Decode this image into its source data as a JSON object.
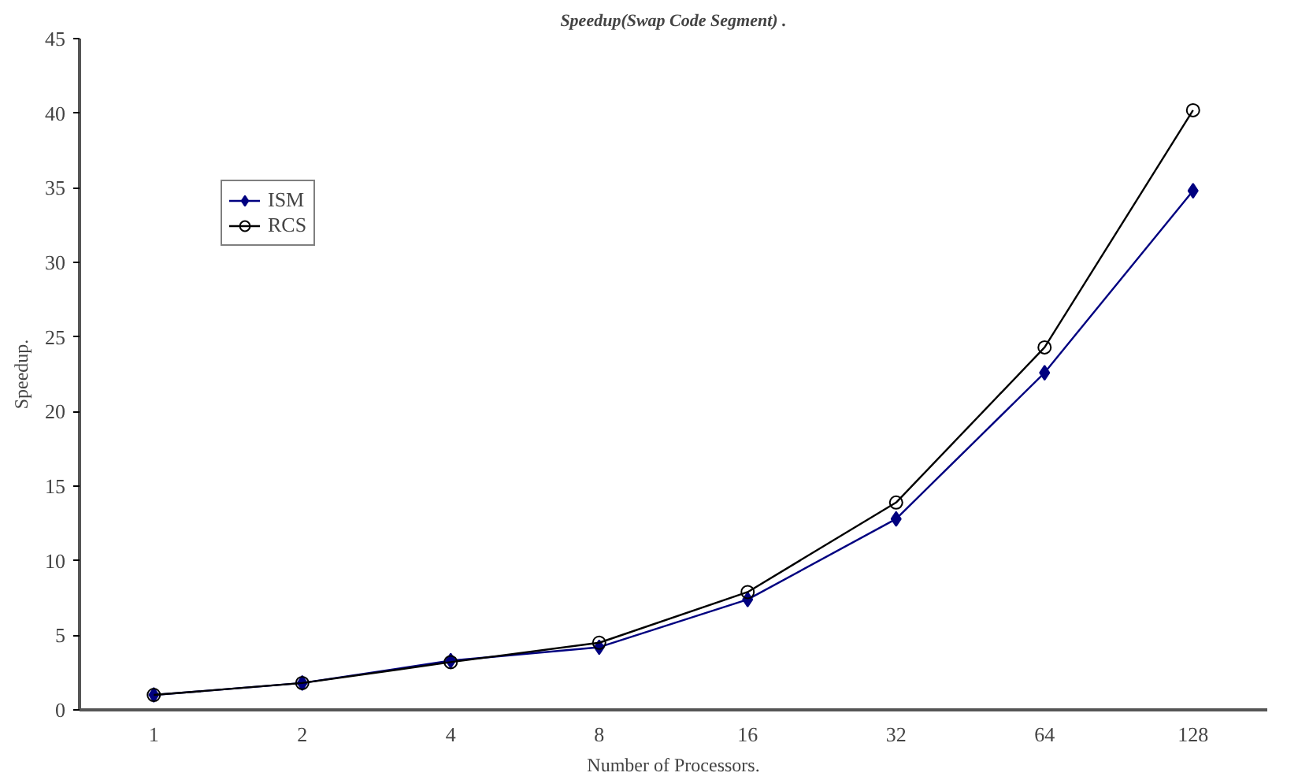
{
  "chart_data": {
    "type": "line",
    "title": "Speedup(Swap Code Segment) .",
    "xlabel": "Number of Processors.",
    "ylabel": "Speedup.",
    "categories": [
      "1",
      "2",
      "4",
      "8",
      "16",
      "32",
      "64",
      "128"
    ],
    "series": [
      {
        "name": "ISM",
        "color": "#000080",
        "marker": "diamond",
        "values": [
          1.0,
          1.8,
          3.3,
          4.2,
          7.4,
          12.8,
          22.6,
          34.8
        ]
      },
      {
        "name": "RCS",
        "color": "#000000",
        "marker": "circle",
        "values": [
          1.0,
          1.8,
          3.2,
          4.5,
          7.9,
          13.9,
          24.3,
          40.2
        ]
      }
    ],
    "ylim": [
      0,
      45
    ],
    "yticks": [
      0,
      5,
      10,
      15,
      20,
      25,
      30,
      35,
      40,
      45
    ],
    "grid": false,
    "legend": "top left",
    "line_style": "solid"
  }
}
